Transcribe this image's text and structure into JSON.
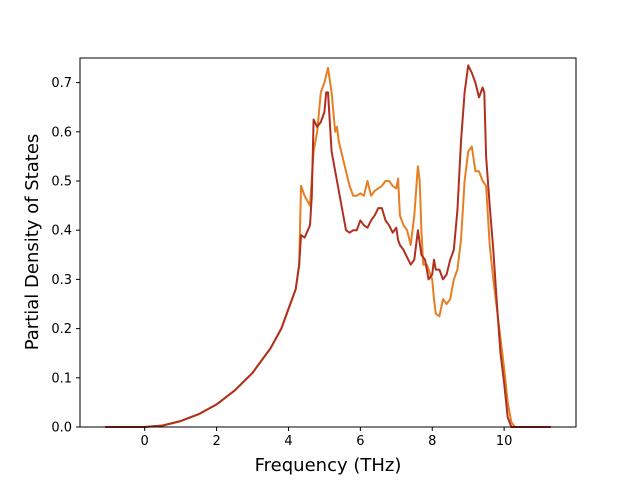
{
  "chart_data": {
    "type": "line",
    "title": "",
    "xlabel": "Frequency (THz)",
    "ylabel": "Partial Density of States",
    "xlim": [
      -1.8,
      12.0
    ],
    "ylim": [
      0.0,
      0.75
    ],
    "xticks": [
      0,
      2,
      4,
      6,
      8,
      10
    ],
    "yticks": [
      0.0,
      0.1,
      0.2,
      0.3,
      0.4,
      0.5,
      0.6,
      0.7
    ],
    "xtick_labels": [
      "0",
      "2",
      "4",
      "6",
      "8",
      "10"
    ],
    "ytick_labels": [
      "0.0",
      "0.1",
      "0.2",
      "0.3",
      "0.4",
      "0.5",
      "0.6",
      "0.7"
    ],
    "grid": false,
    "legend": null,
    "series": [
      {
        "color": "#e67e22",
        "x": [
          -1.1,
          0.0,
          0.5,
          1.0,
          1.5,
          2.0,
          2.5,
          3.0,
          3.2,
          3.5,
          3.8,
          4.0,
          4.2,
          4.3,
          4.35,
          4.45,
          4.6,
          4.7,
          4.8,
          4.9,
          5.0,
          5.1,
          5.2,
          5.3,
          5.35,
          5.4,
          5.5,
          5.6,
          5.7,
          5.8,
          5.9,
          6.0,
          6.1,
          6.2,
          6.3,
          6.4,
          6.5,
          6.6,
          6.7,
          6.8,
          6.9,
          7.0,
          7.05,
          7.1,
          7.2,
          7.3,
          7.4,
          7.5,
          7.6,
          7.65,
          7.7,
          7.75,
          7.85,
          8.0,
          8.05,
          8.1,
          8.2,
          8.3,
          8.4,
          8.5,
          8.6,
          8.7,
          8.8,
          8.9,
          9.0,
          9.1,
          9.2,
          9.3,
          9.4,
          9.5,
          9.6,
          9.7,
          9.8,
          9.9,
          10.0,
          10.1,
          10.2,
          10.3,
          10.35,
          10.4,
          10.5,
          11.3
        ],
        "y": [
          0.0,
          0.0,
          0.003,
          0.012,
          0.026,
          0.046,
          0.074,
          0.11,
          0.13,
          0.16,
          0.2,
          0.24,
          0.28,
          0.33,
          0.49,
          0.47,
          0.45,
          0.56,
          0.6,
          0.68,
          0.7,
          0.73,
          0.68,
          0.6,
          0.61,
          0.58,
          0.55,
          0.52,
          0.49,
          0.47,
          0.47,
          0.475,
          0.47,
          0.5,
          0.47,
          0.48,
          0.485,
          0.49,
          0.5,
          0.5,
          0.49,
          0.485,
          0.505,
          0.43,
          0.41,
          0.4,
          0.37,
          0.43,
          0.53,
          0.5,
          0.4,
          0.33,
          0.33,
          0.3,
          0.26,
          0.23,
          0.225,
          0.26,
          0.25,
          0.26,
          0.3,
          0.32,
          0.38,
          0.5,
          0.56,
          0.57,
          0.52,
          0.52,
          0.5,
          0.49,
          0.37,
          0.3,
          0.24,
          0.18,
          0.12,
          0.05,
          0.01,
          0.0,
          0.0,
          0.0,
          0.0,
          0.0
        ]
      },
      {
        "color": "#b03020",
        "x": [
          -1.1,
          0.0,
          0.5,
          1.0,
          1.5,
          2.0,
          2.5,
          3.0,
          3.2,
          3.5,
          3.8,
          4.0,
          4.2,
          4.3,
          4.35,
          4.45,
          4.6,
          4.65,
          4.7,
          4.8,
          4.9,
          5.0,
          5.05,
          5.1,
          5.2,
          5.3,
          5.4,
          5.5,
          5.6,
          5.7,
          5.8,
          5.9,
          6.0,
          6.1,
          6.2,
          6.3,
          6.4,
          6.5,
          6.6,
          6.7,
          6.8,
          6.9,
          7.0,
          7.05,
          7.1,
          7.2,
          7.3,
          7.4,
          7.5,
          7.6,
          7.7,
          7.8,
          7.9,
          8.0,
          8.05,
          8.1,
          8.2,
          8.3,
          8.4,
          8.5,
          8.6,
          8.7,
          8.8,
          8.9,
          9.0,
          9.1,
          9.2,
          9.3,
          9.4,
          9.45,
          9.5,
          9.6,
          9.7,
          9.8,
          9.9,
          10.0,
          10.1,
          10.2,
          10.3,
          10.35,
          10.4,
          10.5,
          11.3
        ],
        "y": [
          0.0,
          0.0,
          0.003,
          0.012,
          0.026,
          0.046,
          0.074,
          0.11,
          0.13,
          0.16,
          0.2,
          0.24,
          0.28,
          0.33,
          0.39,
          0.385,
          0.41,
          0.47,
          0.625,
          0.61,
          0.62,
          0.64,
          0.68,
          0.68,
          0.56,
          0.52,
          0.48,
          0.44,
          0.4,
          0.395,
          0.4,
          0.4,
          0.42,
          0.41,
          0.405,
          0.42,
          0.43,
          0.445,
          0.445,
          0.42,
          0.41,
          0.395,
          0.405,
          0.38,
          0.37,
          0.36,
          0.345,
          0.33,
          0.34,
          0.4,
          0.35,
          0.34,
          0.3,
          0.31,
          0.34,
          0.32,
          0.32,
          0.3,
          0.31,
          0.34,
          0.36,
          0.44,
          0.58,
          0.68,
          0.735,
          0.72,
          0.7,
          0.67,
          0.69,
          0.68,
          0.55,
          0.45,
          0.36,
          0.25,
          0.15,
          0.09,
          0.02,
          0.0,
          0.0,
          0.0,
          0.0,
          0.0,
          0.0
        ]
      }
    ]
  }
}
